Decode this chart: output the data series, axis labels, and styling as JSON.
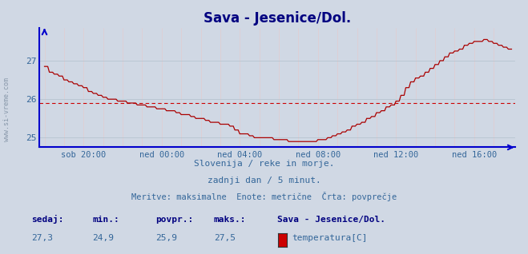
{
  "title": "Sava - Jesenice/Dol.",
  "title_color": "#000080",
  "title_fontsize": 12,
  "bg_color": "#d0d8e4",
  "plot_bg_color": "#d0d8e4",
  "line_color": "#aa0000",
  "axis_color": "#0000cc",
  "grid_color_h": "#b8c4d0",
  "grid_color_v": "#e8c8c8",
  "avg_line_color": "#cc0000",
  "avg_line_value": 25.9,
  "ylim": [
    24.75,
    27.85
  ],
  "yticks": [
    25,
    26,
    27
  ],
  "tick_color": "#336699",
  "subtitle1": "Slovenija / reke in morje.",
  "subtitle2": "zadnji dan / 5 minut.",
  "subtitle3": "Meritve: maksimalne  Enote: metrične  Črta: povprečje",
  "footer_labels": [
    "sedaj:",
    "min.:",
    "povpr.:",
    "maks.:"
  ],
  "footer_values": [
    "27,3",
    "24,9",
    "25,9",
    "27,5"
  ],
  "footer_series_name": "Sava - Jesenice/Dol.",
  "footer_measure": "temperatura[C]",
  "legend_color": "#cc0000",
  "xtick_labels": [
    "sob 20:00",
    "ned 00:00",
    "ned 04:00",
    "ned 08:00",
    "ned 12:00",
    "ned 16:00"
  ],
  "xtick_positions": [
    24,
    72,
    120,
    168,
    216,
    264
  ],
  "total_points": 288,
  "sidebar_text": "www.si-vreme.com"
}
